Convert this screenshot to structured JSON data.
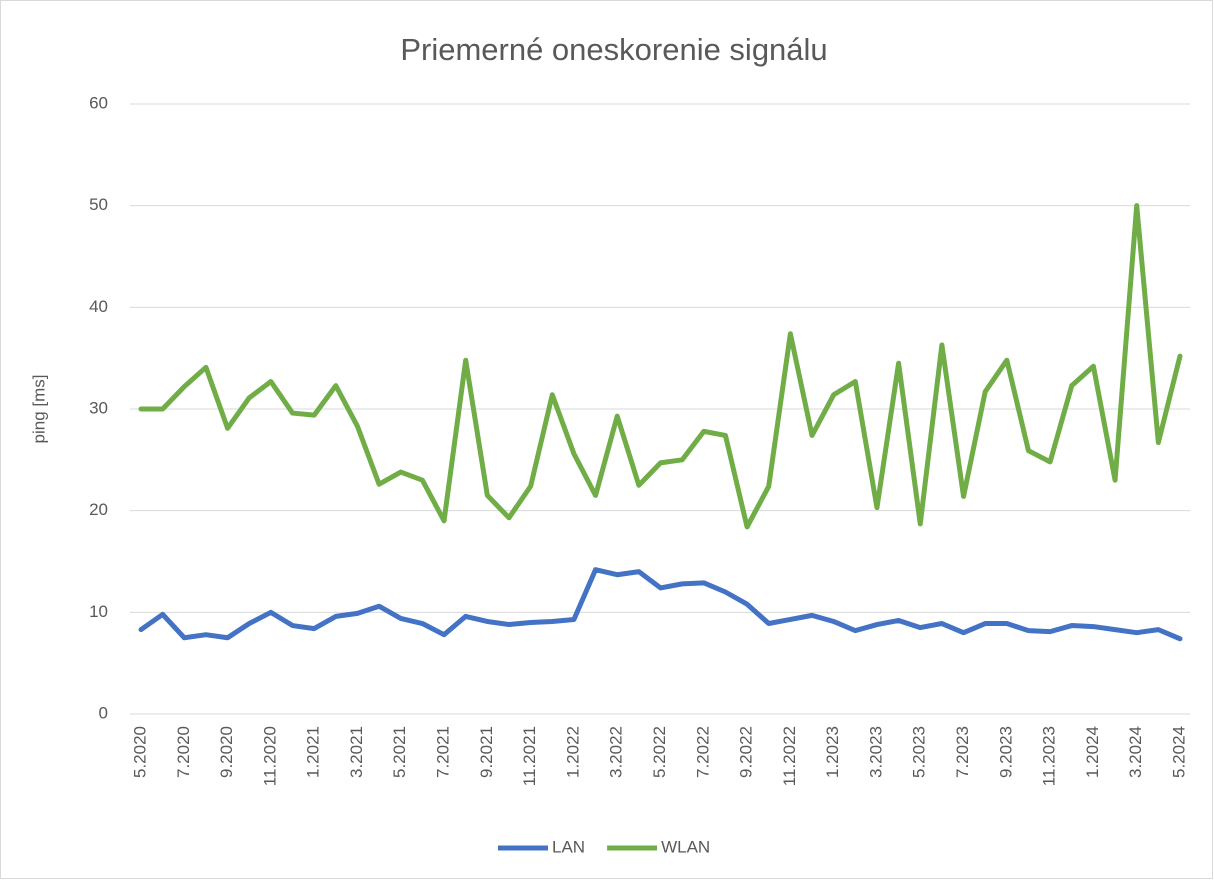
{
  "chart_data": {
    "type": "line",
    "title": "Priemerné oneskorenie signálu",
    "y_label": "ping [ms]",
    "categories": [
      "5.2020",
      null,
      "7.2020",
      null,
      "9.2020",
      null,
      "11.2020",
      null,
      "1.2021",
      null,
      "3.2021",
      null,
      "5.2021",
      null,
      "7.2021",
      null,
      "9.2021",
      null,
      "11.2021",
      null,
      "1.2022",
      null,
      "3.2022",
      null,
      "5.2022",
      null,
      "7.2022",
      null,
      "9.2022",
      null,
      "11.2022",
      null,
      "1.2023",
      null,
      "3.2023",
      null,
      "5.2023",
      null,
      "7.2023",
      null,
      "9.2023",
      null,
      "11.2023",
      null,
      "1.2024",
      null,
      "3.2024",
      null,
      "5.2024"
    ],
    "series": [
      {
        "name": "LAN",
        "color": "#4472c4",
        "values": [
          8.3,
          9.8,
          7.5,
          7.8,
          7.5,
          8.9,
          10.0,
          8.7,
          8.4,
          9.6,
          9.9,
          10.6,
          9.4,
          8.9,
          7.8,
          9.6,
          9.1,
          8.8,
          9.0,
          9.1,
          9.3,
          14.2,
          13.7,
          14.0,
          12.4,
          12.8,
          12.9,
          12.0,
          10.8,
          8.9,
          9.3,
          9.7,
          9.1,
          8.2,
          8.8,
          9.2,
          8.5,
          8.9,
          8.0,
          8.9,
          8.9,
          8.2,
          8.1,
          8.7,
          8.6,
          8.3,
          8.0,
          8.3,
          7.4
        ]
      },
      {
        "name": "WLAN",
        "color": "#70ad47",
        "values": [
          30.0,
          30.0,
          32.2,
          34.1,
          28.1,
          31.1,
          32.7,
          29.6,
          29.4,
          32.3,
          28.3,
          22.6,
          23.8,
          23.0,
          19.0,
          34.8,
          21.5,
          19.3,
          22.4,
          31.4,
          25.6,
          21.5,
          29.3,
          22.5,
          24.7,
          25.0,
          27.8,
          27.4,
          18.4,
          22.4,
          37.4,
          27.4,
          31.4,
          32.7,
          20.3,
          34.5,
          18.7,
          36.3,
          21.4,
          31.7,
          34.8,
          25.9,
          24.8,
          32.3,
          34.2,
          23.0,
          50.0,
          26.7,
          35.2
        ]
      }
    ],
    "ylim": [
      0,
      60
    ],
    "yticks": [
      0,
      10,
      20,
      30,
      40,
      50,
      60
    ],
    "grid": true,
    "legend": "bottom"
  }
}
